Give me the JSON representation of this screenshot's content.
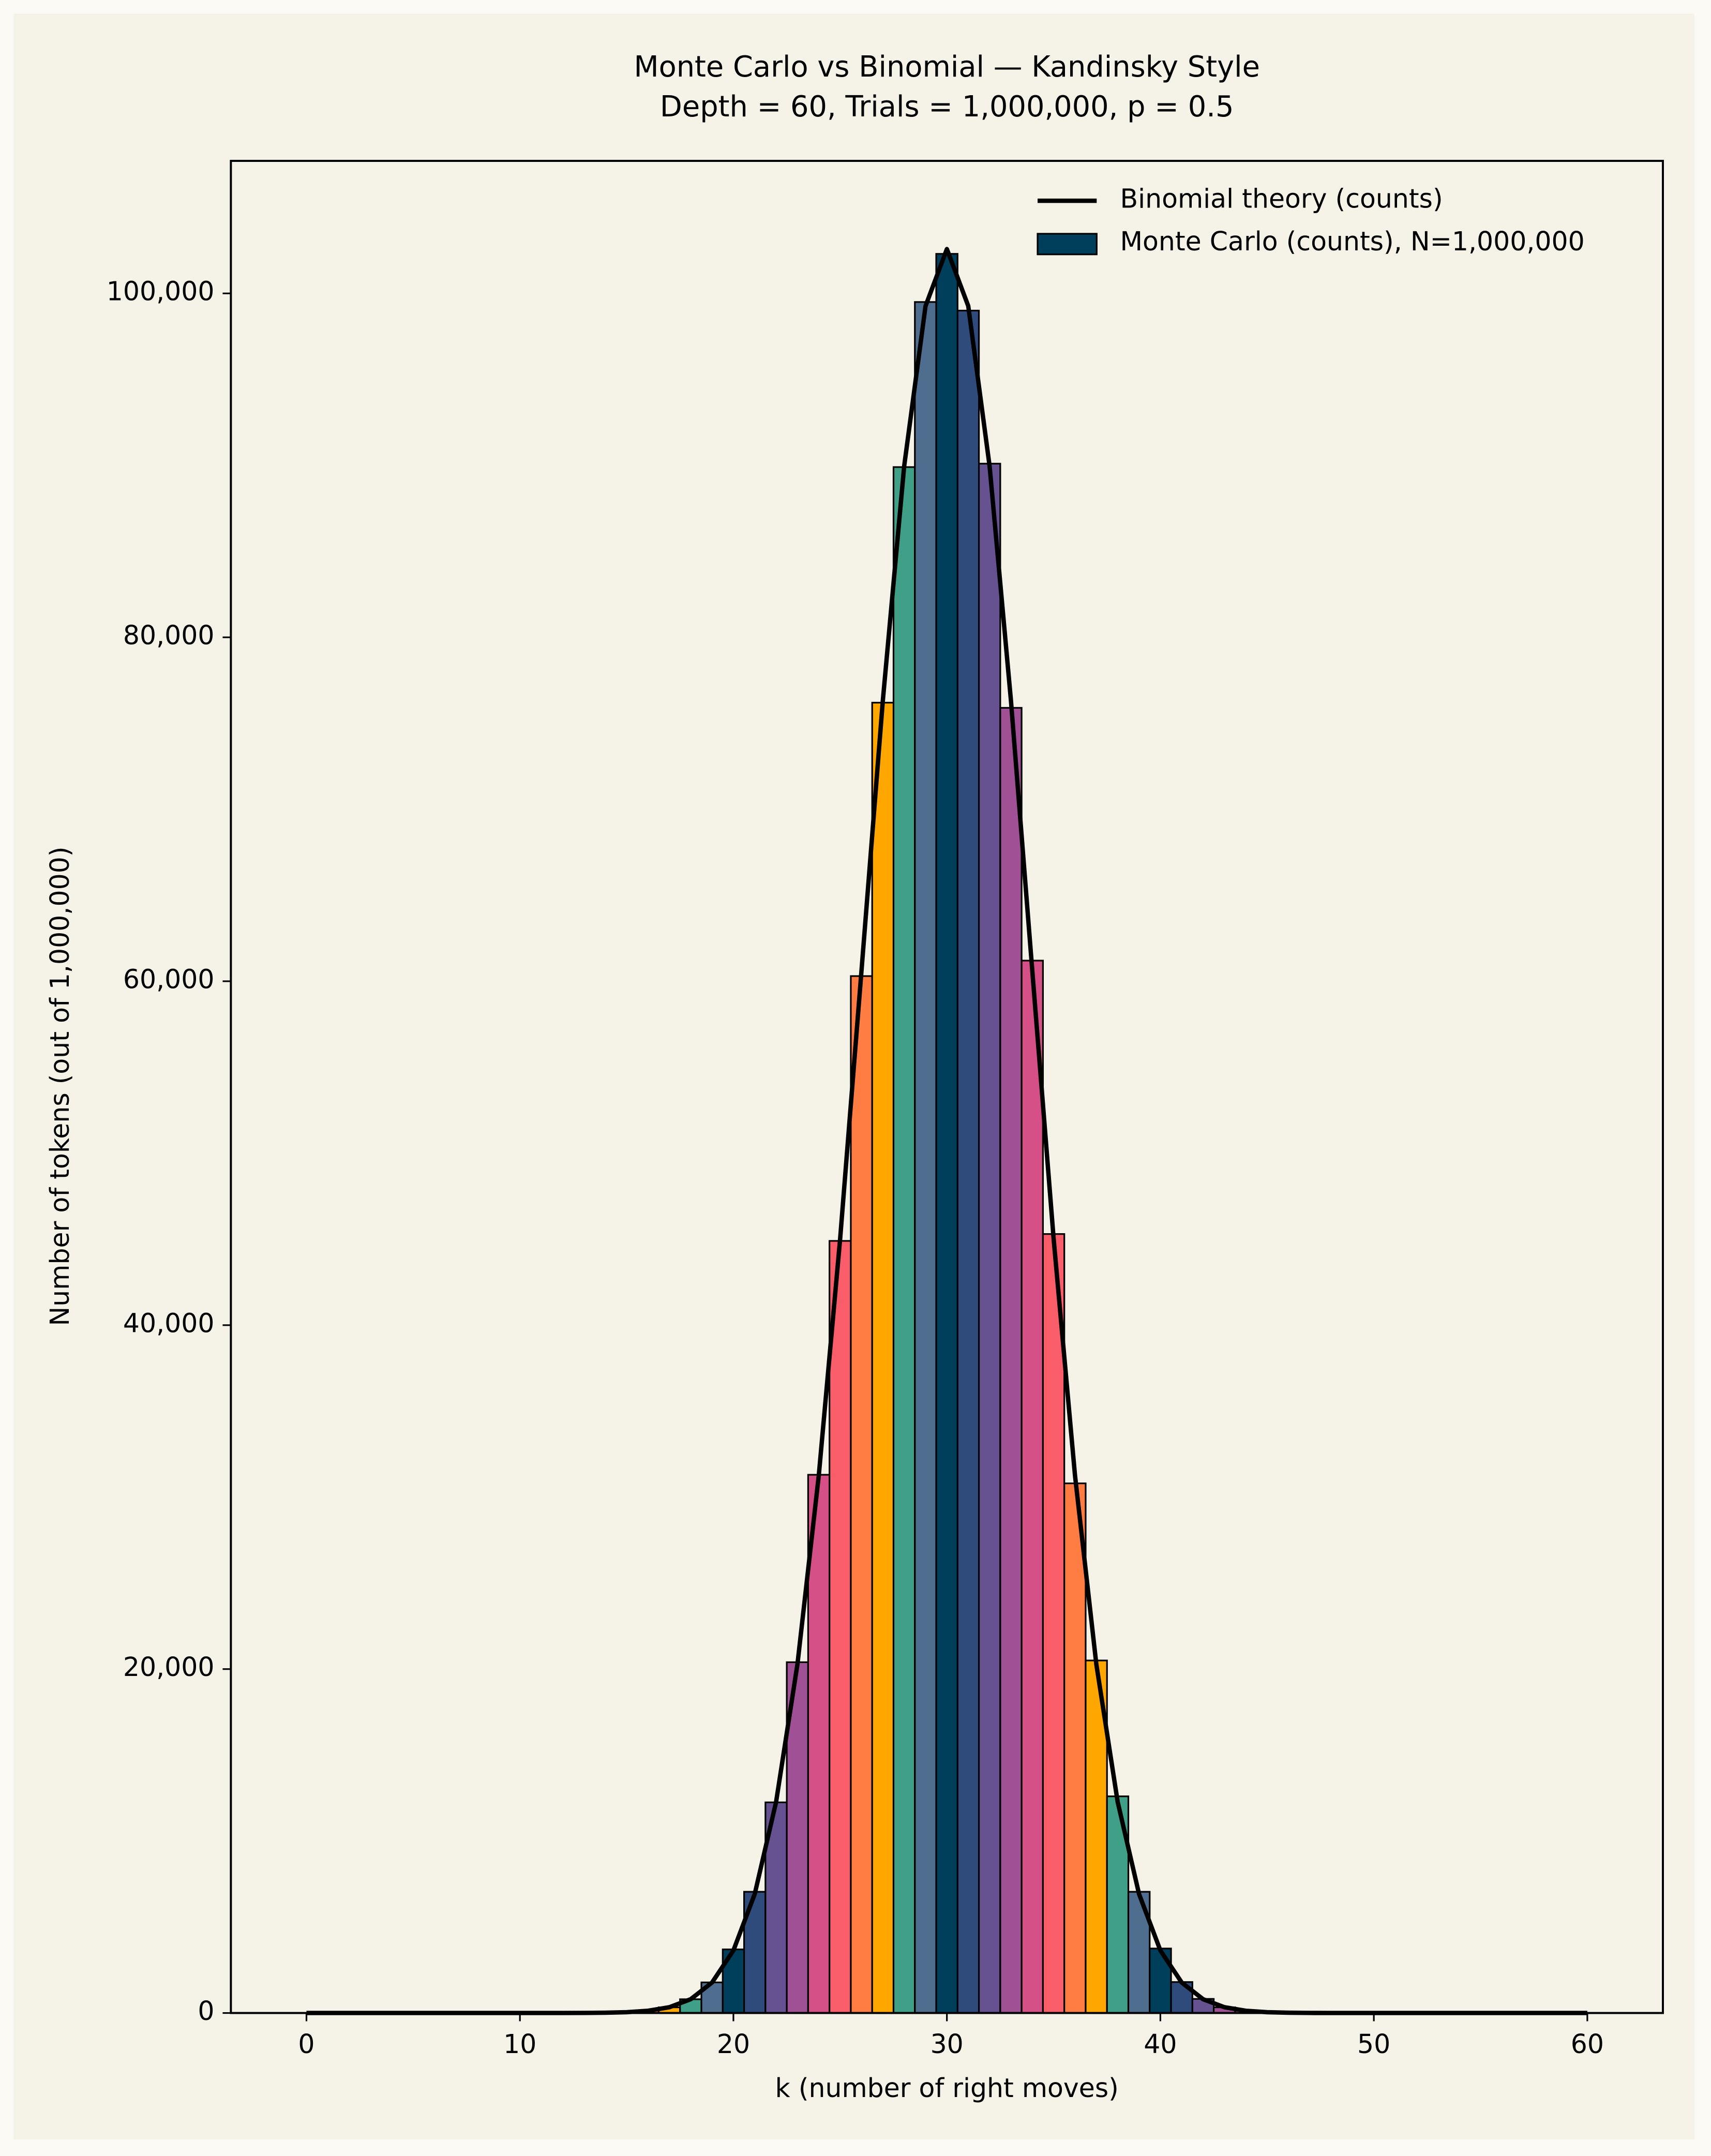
{
  "chart_data": {
    "type": "histogram",
    "title": "Monte Carlo vs Binomial — Kandinsky Style",
    "subtitle": "Depth = 60, Trials = 1,000,000, p = 0.5",
    "x_label": "k (number of right moves)",
    "y_label": "Number of tokens (out of 1,000,000)",
    "xlim": [
      -3.54,
      63.54
    ],
    "ylim": [
      0,
      107707
    ],
    "xticks": [
      0,
      10,
      20,
      30,
      40,
      50,
      60
    ],
    "yticks": [
      0,
      {
        "value": 20000,
        "label": "20,000"
      },
      {
        "value": 40000,
        "label": "40,000"
      },
      {
        "value": 60000,
        "label": "60,000"
      },
      {
        "value": 80000,
        "label": "80,000"
      },
      {
        "value": 100000,
        "label": "100,000"
      }
    ],
    "legend": "upper right",
    "series": [
      {
        "name": "Binomial theory (counts)",
        "type": "line",
        "color": "#000000",
        "x": [
          0,
          1,
          2,
          3,
          4,
          5,
          6,
          7,
          8,
          9,
          10,
          11,
          12,
          13,
          14,
          15,
          16,
          17,
          18,
          19,
          20,
          21,
          22,
          23,
          24,
          25,
          26,
          27,
          28,
          29,
          30,
          31,
          32,
          33,
          34,
          35,
          36,
          37,
          38,
          39,
          40,
          41,
          42,
          43,
          44,
          45,
          46,
          47,
          48,
          49,
          50,
          51,
          52,
          53,
          54,
          55,
          56,
          57,
          58,
          59,
          60
        ],
        "values": [
          0,
          0,
          0,
          0,
          0,
          0,
          0,
          0,
          0,
          0,
          0,
          0,
          1,
          4,
          15,
          46,
          130,
          336,
          802,
          1774,
          3636,
          6925,
          12277,
          20283,
          31270,
          45029,
          60616,
          76331,
          89962,
          99269,
          102578,
          99269,
          89962,
          76331,
          60616,
          45029,
          31270,
          20283,
          12277,
          6925,
          3636,
          1774,
          802,
          336,
          130,
          46,
          15,
          4,
          1,
          0,
          0,
          0,
          0,
          0,
          0,
          0,
          0,
          0,
          0,
          0,
          0
        ]
      },
      {
        "name": "Monte Carlo (counts), N=1,000,000",
        "type": "histogram",
        "color": "#003f5c",
        "colors": [
          "#003f5c",
          "#2f4b7c",
          "#665191",
          "#a05195",
          "#d45087",
          "#f95d6a",
          "#ff7c43",
          "#ffa600",
          "#3f9f87",
          "#4f6d8f"
        ],
        "bins": [
          -0.5,
          0.5,
          1.5,
          2.5,
          3.5,
          4.5,
          5.5,
          6.5,
          7.5,
          8.5,
          9.5,
          10.5,
          11.5,
          12.5,
          13.5,
          14.5,
          15.5,
          16.5,
          17.5,
          18.5,
          19.5,
          20.5,
          21.5,
          22.5,
          23.5,
          24.5,
          25.5,
          26.5,
          27.5,
          28.5,
          29.5,
          30.5,
          31.5,
          32.5,
          33.5,
          34.5,
          35.5,
          36.5,
          37.5,
          38.5,
          39.5,
          40.5,
          41.5,
          42.5,
          43.5,
          44.5,
          45.5,
          46.5,
          47.5,
          48.5,
          49.5,
          50.5,
          51.5,
          52.5,
          53.5,
          54.5,
          55.5,
          56.5,
          57.5,
          58.5,
          59.5,
          60.5
        ],
        "values": [
          0,
          0,
          0,
          0,
          0,
          0,
          0,
          0,
          0,
          0,
          0,
          0,
          0,
          3,
          14,
          50,
          140,
          330,
          800,
          1780,
          3700,
          7050,
          12250,
          20400,
          31300,
          44900,
          60300,
          76200,
          89900,
          99500,
          102300,
          99000,
          90100,
          75900,
          61200,
          45300,
          30800,
          20500,
          12600,
          7050,
          3750,
          1800,
          820,
          330,
          130,
          45,
          15,
          4,
          1,
          0,
          0,
          0,
          0,
          0,
          0,
          0,
          0,
          0,
          0,
          0,
          0
        ]
      }
    ]
  }
}
